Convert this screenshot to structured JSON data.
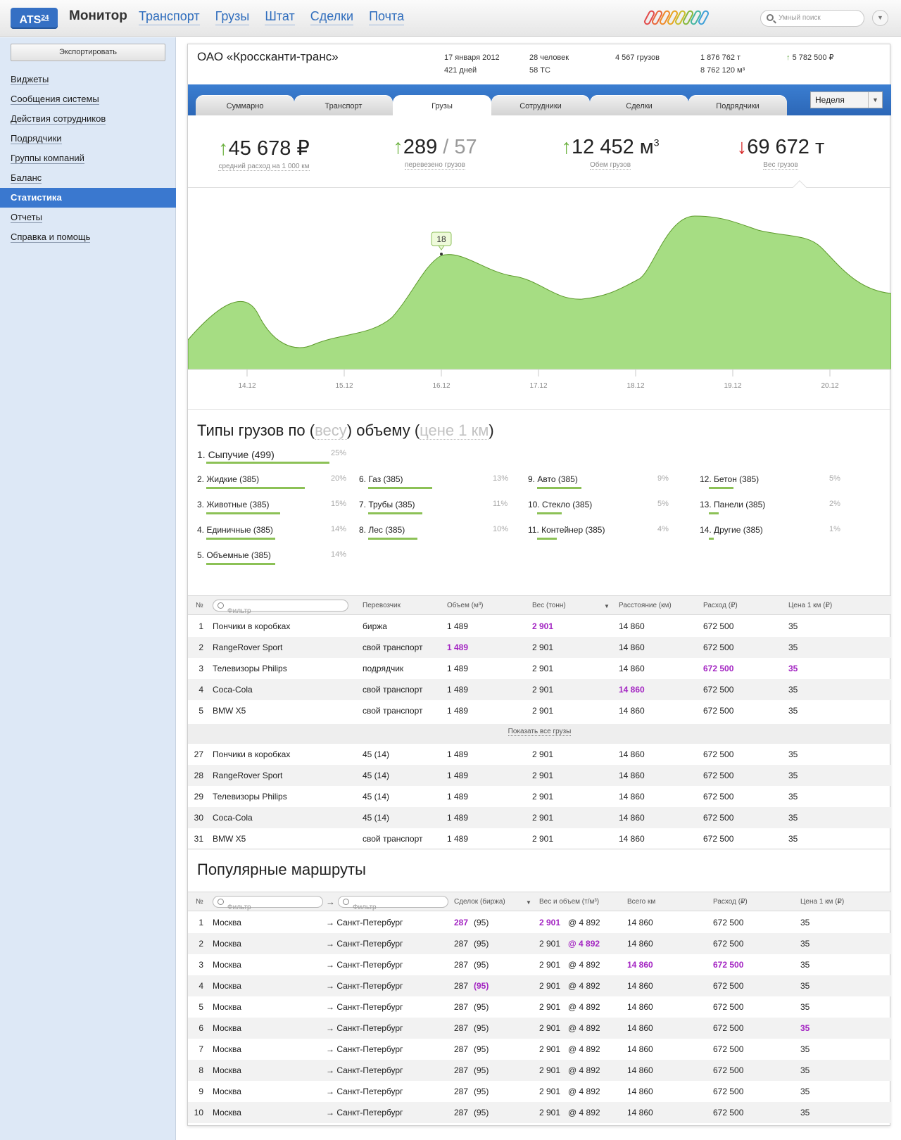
{
  "app": {
    "logo": "ATS",
    "logo_sup": "24",
    "title": "Монитор",
    "nav": [
      "Транспорт",
      "Грузы",
      "Штат",
      "Сделки",
      "Почта"
    ],
    "search_placeholder": "Умный поиск",
    "clip_colors": [
      "#e24b4b",
      "#e9663a",
      "#ef8a2a",
      "#e8a524",
      "#c9bd2b",
      "#86b83a",
      "#45b6a0",
      "#3fa0d8"
    ]
  },
  "sidebar": {
    "export": "Экспортировать",
    "items": [
      "Виджеты",
      "Сообщения системы",
      "Действия сотрудников",
      "Подрядчики",
      "Группы компаний",
      "Баланс",
      "Статистика",
      "Отчеты",
      "Справка и помощь"
    ],
    "active": "Статистика"
  },
  "company": {
    "name": "ОАО «Кроссканти-транс»",
    "date": "17 января 2012",
    "days": "421 дней",
    "people": "28 человек",
    "vehicles": "58 ТС",
    "cargos": "4 567 грузов",
    "tons": "1 876 762 т",
    "volume": "8 762 120 м³",
    "money": "5 782 500 ₽",
    "money_arrow": "↑"
  },
  "tabs": [
    "Суммарно",
    "Транспорт",
    "Грузы",
    "Сотрудники",
    "Сделки",
    "Подрядчики"
  ],
  "active_tab": "Грузы",
  "period": "Неделя",
  "kpis": [
    {
      "arrow": "up",
      "value": "45 678 ₽",
      "caption": "средний расход на 1 000 км"
    },
    {
      "arrow": "up",
      "value": "289",
      "value2": "/ 57",
      "caption": "перевезено грузов"
    },
    {
      "arrow": "up",
      "value": "12 452 м",
      "sup": "3",
      "caption": "Обем грузов"
    },
    {
      "arrow": "down",
      "value": "69 672 т",
      "caption": "Вес грузов"
    }
  ],
  "chart_data": {
    "type": "area",
    "x": [
      "14.12",
      "15.12",
      "16.12",
      "17.12",
      "18.12",
      "19.12",
      "20.12"
    ],
    "tooltip": {
      "x": "16.12",
      "value": "18"
    },
    "fill": "#a6dd83",
    "stroke": "#5d9a2c"
  },
  "types": {
    "title_main": "Типы грузов по",
    "title_alt1": "весу",
    "title_main2": "объему",
    "title_alt2": "цене 1 км",
    "items": [
      {
        "label": "1. Сыпучие (499)",
        "pct": "25%",
        "share": 0.25
      },
      {
        "label": "2. Жидкие (385)",
        "pct": "20%",
        "share": 0.2
      },
      {
        "label": "3. Животные (385)",
        "pct": "15%",
        "share": 0.15
      },
      {
        "label": "4. Единичные (385)",
        "pct": "14%",
        "share": 0.14
      },
      {
        "label": "5. Объемные (385)",
        "pct": "14%",
        "share": 0.14
      },
      {
        "label": "6. Газ (385)",
        "pct": "13%",
        "share": 0.13
      },
      {
        "label": "7. Трубы (385)",
        "pct": "11%",
        "share": 0.11
      },
      {
        "label": "8. Лес (385)",
        "pct": "10%",
        "share": 0.1
      },
      {
        "label": "9. Авто (385)",
        "pct": "9%",
        "share": 0.09
      },
      {
        "label": "10. Стекло (385)",
        "pct": "5%",
        "share": 0.05
      },
      {
        "label": "11. Контейнер (385)",
        "pct": "4%",
        "share": 0.04
      },
      {
        "label": "12. Бетон (385)",
        "pct": "5%",
        "share": 0.05
      },
      {
        "label": "13. Панели (385)",
        "pct": "2%",
        "share": 0.02
      },
      {
        "label": "14. Другие (385)",
        "pct": "1%",
        "share": 0.01
      }
    ]
  },
  "cargo_table": {
    "headers": [
      "№",
      "Фильтр",
      "Перевозчик",
      "Объем (м³)",
      "Вес (тонн)",
      "Расстояние (км)",
      "Расход (₽)",
      "Цена 1 км (₽)"
    ],
    "rows": [
      [
        "1",
        "Пончики в коробках",
        "биржа",
        "1 489",
        "2 901",
        "14 860",
        "672 500",
        "35"
      ],
      [
        "2",
        "RangeRover Sport",
        "свой транспорт",
        "1 489",
        "2 901",
        "14 860",
        "672 500",
        "35"
      ],
      [
        "3",
        "Телевизоры Philips",
        "подрядчик",
        "1 489",
        "2 901",
        "14 860",
        "672 500",
        "35"
      ],
      [
        "4",
        "Coca-Cola",
        "свой транспорт",
        "1 489",
        "2 901",
        "14 860",
        "672 500",
        "35"
      ],
      [
        "5",
        "BMW X5",
        "свой транспорт",
        "1 489",
        "2 901",
        "14 860",
        "672 500",
        "35"
      ]
    ],
    "show_all": "Показать все грузы",
    "rows2": [
      [
        "27",
        "Пончики в коробках",
        "45 (14)",
        "1 489",
        "2 901",
        "14 860",
        "672 500",
        "35"
      ],
      [
        "28",
        "RangeRover Sport",
        "45 (14)",
        "1 489",
        "2 901",
        "14 860",
        "672 500",
        "35"
      ],
      [
        "29",
        "Телевизоры Philips",
        "45 (14)",
        "1 489",
        "2 901",
        "14 860",
        "672 500",
        "35"
      ],
      [
        "30",
        "Coca-Cola",
        "45 (14)",
        "1 489",
        "2 901",
        "14 860",
        "672 500",
        "35"
      ],
      [
        "31",
        "BMW X5",
        "свой транспорт",
        "1 489",
        "2 901",
        "14 860",
        "672 500",
        "35"
      ]
    ]
  },
  "routes": {
    "title": "Популярные маршруты",
    "headers": [
      "№",
      "Фильтр",
      "Фильтр",
      "Сделок (биржа)",
      "Вес и объем (т/м³)",
      "Всего км",
      "Расход (₽)",
      "Цена 1 км (₽)"
    ],
    "rows": [
      [
        "1",
        "Москва",
        "→ Санкт-Петербург",
        "287",
        "(95)",
        "2 901",
        "@ 4 892",
        "14 860",
        "672 500",
        "35"
      ],
      [
        "2",
        "Москва",
        "→ Санкт-Петербург",
        "287",
        "(95)",
        "2 901",
        "@ 4 892",
        "14 860",
        "672 500",
        "35"
      ],
      [
        "3",
        "Москва",
        "→ Санкт-Петербург",
        "287",
        "(95)",
        "2 901",
        "@ 4 892",
        "14 860",
        "672 500",
        "35"
      ],
      [
        "4",
        "Москва",
        "→ Санкт-Петербург",
        "287",
        "(95)",
        "2 901",
        "@ 4 892",
        "14 860",
        "672 500",
        "35"
      ],
      [
        "5",
        "Москва",
        "→ Санкт-Петербург",
        "287",
        "(95)",
        "2 901",
        "@ 4 892",
        "14 860",
        "672 500",
        "35"
      ],
      [
        "6",
        "Москва",
        "→ Санкт-Петербург",
        "287",
        "(95)",
        "2 901",
        "@ 4 892",
        "14 860",
        "672 500",
        "35"
      ],
      [
        "7",
        "Москва",
        "→ Санкт-Петербург",
        "287",
        "(95)",
        "2 901",
        "@ 4 892",
        "14 860",
        "672 500",
        "35"
      ],
      [
        "8",
        "Москва",
        "→ Санкт-Петербург",
        "287",
        "(95)",
        "2 901",
        "@ 4 892",
        "14 860",
        "672 500",
        "35"
      ],
      [
        "9",
        "Москва",
        "→ Санкт-Петербург",
        "287",
        "(95)",
        "2 901",
        "@ 4 892",
        "14 860",
        "672 500",
        "35"
      ],
      [
        "10",
        "Москва",
        "→ Санкт-Петербург",
        "287",
        "(95)",
        "2 901",
        "@ 4 892",
        "14 860",
        "672 500",
        "35"
      ]
    ]
  },
  "colors": {
    "highlight": "#a324c2",
    "accent": "#3a78cf"
  }
}
